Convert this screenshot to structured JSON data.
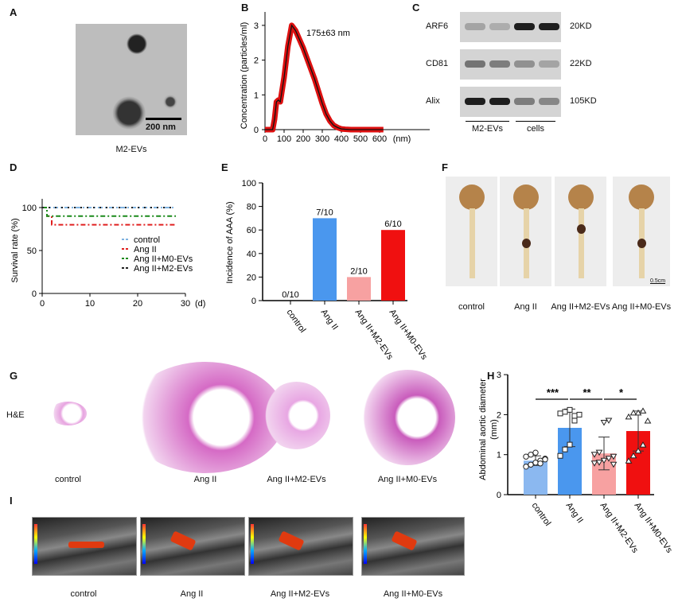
{
  "panels": {
    "A": {
      "label": "A",
      "scale_bar": "200 nm",
      "caption": "M2-EVs"
    },
    "B": {
      "label": "B",
      "annotation": "175±63 nm"
    },
    "C": {
      "label": "C",
      "rows": [
        {
          "name": "ARF6",
          "size": "20KD"
        },
        {
          "name": "CD81",
          "size": "22KD"
        },
        {
          "name": "Alix",
          "size": "105KD"
        }
      ],
      "groups": [
        "M2-EVs",
        "cells"
      ]
    },
    "D": {
      "label": "D"
    },
    "E": {
      "label": "E"
    },
    "F": {
      "label": "F",
      "captions": [
        "control",
        "Ang II",
        "Ang II+M2-EVs",
        "Ang II+M0-EVs"
      ],
      "scale_bar": "0.5cm"
    },
    "G": {
      "label": "G",
      "row_label": "H&E",
      "captions": [
        "control",
        "Ang II",
        "Ang II+M2-EVs",
        "Ang II+M0-EVs"
      ]
    },
    "H": {
      "label": "H"
    },
    "I": {
      "label": "I",
      "captions": [
        "control",
        "Ang II",
        "Ang II+M2-EVs",
        "Ang II+M0-EVs"
      ]
    }
  },
  "colors": {
    "control": "#8bb8f0",
    "ang2": "#4a97ee",
    "m2": "#f7a1a1",
    "m0": "#f01010",
    "nta": "#dd1010"
  },
  "chart_data": [
    {
      "id": "B",
      "type": "line",
      "xlabel": "(nm)",
      "ylabel": "Concentration (particles/ml)",
      "xlim": [
        0,
        620
      ],
      "ylim": [
        0,
        3.3
      ],
      "xticks": [
        0,
        100,
        200,
        300,
        400,
        500,
        600
      ],
      "yticks": [
        0,
        1,
        2,
        3
      ],
      "x": [
        0,
        40,
        50,
        60,
        70,
        80,
        100,
        120,
        140,
        160,
        180,
        200,
        220,
        240,
        260,
        280,
        300,
        320,
        340,
        360,
        380,
        400,
        420,
        450,
        620
      ],
      "y": [
        0,
        0,
        0.3,
        0.8,
        0.85,
        0.8,
        1.5,
        2.4,
        3.0,
        2.85,
        2.6,
        2.35,
        2.05,
        1.75,
        1.45,
        1.1,
        0.75,
        0.45,
        0.25,
        0.12,
        0.06,
        0.02,
        0.01,
        0,
        0
      ]
    },
    {
      "id": "D",
      "type": "line",
      "xlabel": "(d)",
      "ylabel": "Survival rate (%)",
      "xlim": [
        0,
        30
      ],
      "ylim": [
        0,
        110
      ],
      "xticks": [
        0,
        10,
        20,
        30
      ],
      "yticks": [
        0,
        50,
        100
      ],
      "series": [
        {
          "name": "control",
          "color": "#7fb2e0",
          "x": [
            0,
            28
          ],
          "y": [
            100,
            100
          ]
        },
        {
          "name": "Ang II",
          "color": "#e02020",
          "x": [
            0,
            1,
            1,
            2,
            2,
            28
          ],
          "y": [
            100,
            100,
            90,
            90,
            80,
            80
          ]
        },
        {
          "name": "Ang II+M0-EVs",
          "color": "#1a8a1a",
          "x": [
            0,
            1,
            1,
            28
          ],
          "y": [
            100,
            100,
            90,
            90
          ]
        },
        {
          "name": "Ang II+M2-EVs",
          "color": "#222222",
          "x": [
            0,
            28
          ],
          "y": [
            100,
            100
          ]
        }
      ]
    },
    {
      "id": "E",
      "type": "bar",
      "ylabel": "Incidence of AAA (%)",
      "ylim": [
        0,
        100
      ],
      "yticks": [
        0,
        20,
        40,
        60,
        80,
        100
      ],
      "categories": [
        "control",
        "Ang II",
        "Ang II+M2-EVs",
        "Ang II+M0-EVs"
      ],
      "values": [
        0,
        70,
        20,
        60
      ],
      "labels": [
        "0/10",
        "7/10",
        "2/10",
        "6/10"
      ]
    },
    {
      "id": "H",
      "type": "bar",
      "ylabel": "Abdominal aortic diameter",
      "ylabel2": "(mm)",
      "ylim": [
        0,
        3
      ],
      "yticks": [
        0,
        1,
        2,
        3
      ],
      "categories": [
        "control",
        "Ang II",
        "Ang II+M2-EVs",
        "Ang II+M0-EVs"
      ],
      "values": [
        0.85,
        1.67,
        1.03,
        1.59
      ],
      "sd": [
        0.12,
        0.47,
        0.41,
        0.5
      ],
      "points": [
        [
          0.7,
          0.75,
          0.8,
          0.85,
          0.9,
          0.95,
          1.0,
          1.05,
          0.78,
          0.88
        ],
        [
          0.97,
          1.13,
          1.25,
          1.85,
          2.0,
          2.03,
          2.07,
          2.12,
          1.97
        ],
        [
          0.78,
          0.8,
          0.85,
          0.9,
          0.95,
          1.0,
          1.05,
          1.8,
          1.85,
          0.75
        ],
        [
          0.85,
          0.98,
          1.1,
          1.25,
          1.85,
          1.95,
          2.05,
          2.05,
          2.1
        ]
      ],
      "markers": [
        "circle",
        "square",
        "triangle-down",
        "triangle-up"
      ],
      "significance": [
        {
          "from": 0,
          "to": 1,
          "label": "***"
        },
        {
          "from": 1,
          "to": 2,
          "label": "**"
        },
        {
          "from": 2,
          "to": 3,
          "label": "*"
        }
      ]
    }
  ]
}
